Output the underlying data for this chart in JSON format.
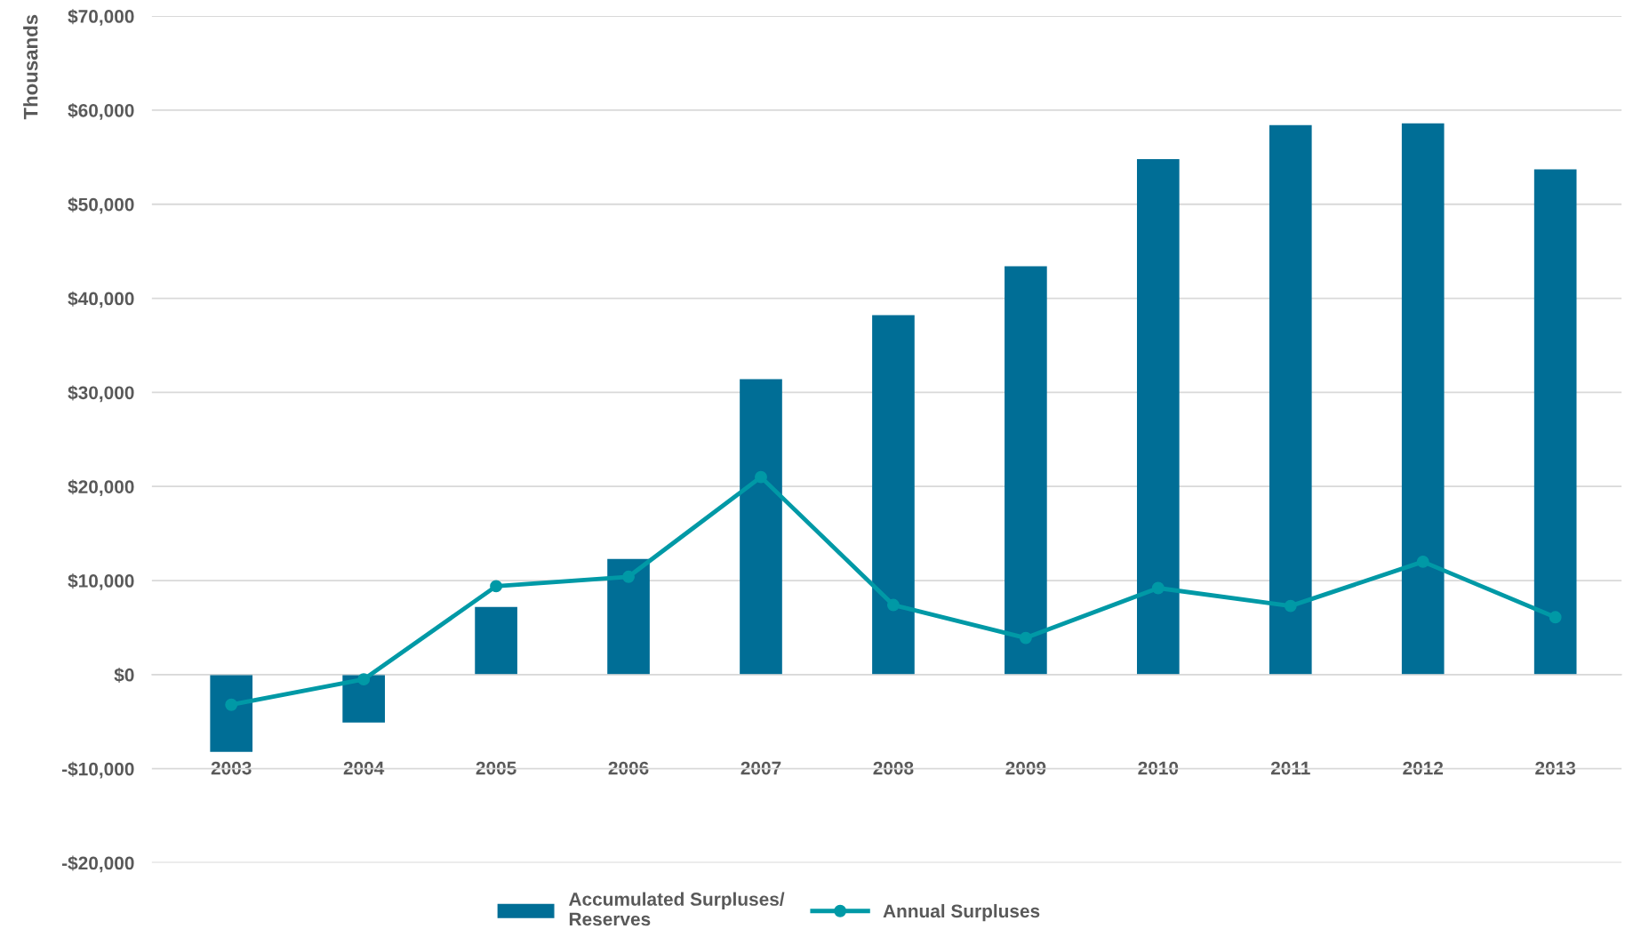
{
  "chart_data": {
    "type": "bar",
    "ylabel": "Thousands",
    "categories": [
      "2003",
      "2004",
      "2005",
      "2006",
      "2007",
      "2008",
      "2009",
      "2010",
      "2011",
      "2012",
      "2013"
    ],
    "series": [
      {
        "name": "Accumulated Surpluses/\nReserves",
        "color": "#006e96",
        "values": [
          -8200,
          -5100,
          7200,
          12300,
          31400,
          38200,
          43400,
          54800,
          58400,
          58600,
          53700
        ]
      },
      {
        "name": "Annual Surpluses",
        "type": "line",
        "color": "#0099a6",
        "marker": "circle",
        "values": [
          -3200,
          -500,
          9400,
          10400,
          21000,
          7400,
          3900,
          9200,
          7300,
          12000,
          6100
        ]
      }
    ],
    "ylim": [
      -20000,
      70000
    ],
    "yticks": [
      {
        "value": -20000,
        "label": "-$20,000"
      },
      {
        "value": -10000,
        "label": "-$10,000"
      },
      {
        "value": 0,
        "label": "$0"
      },
      {
        "value": 10000,
        "label": "$10,000"
      },
      {
        "value": 20000,
        "label": "$20,000"
      },
      {
        "value": 30000,
        "label": "$30,000"
      },
      {
        "value": 40000,
        "label": "$40,000"
      },
      {
        "value": 50000,
        "label": "$50,000"
      },
      {
        "value": 60000,
        "label": "$60,000"
      },
      {
        "value": 70000,
        "label": "$70,000"
      }
    ],
    "grid": "y",
    "legend": "bottom"
  }
}
